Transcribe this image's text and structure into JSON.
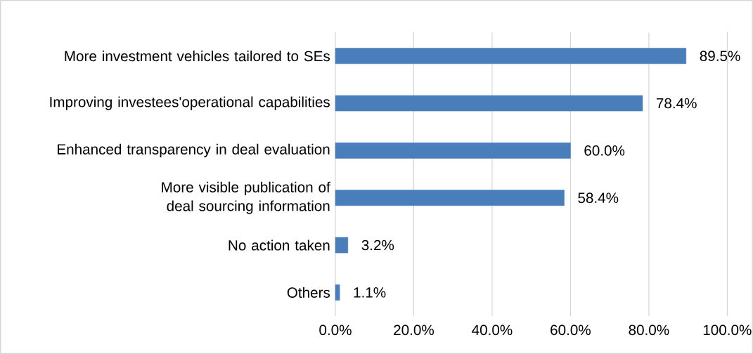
{
  "chart_data": {
    "type": "bar",
    "orientation": "horizontal",
    "categories": [
      "More investment vehicles tailored to SEs",
      "Improving investees'operational capabilities",
      "Enhanced transparency in deal evaluation",
      "More visible publication of deal sourcing information",
      "No action taken",
      "Others"
    ],
    "values": [
      89.5,
      78.4,
      60.0,
      58.4,
      3.2,
      1.1
    ],
    "value_labels": [
      "89.5%",
      "78.4%",
      "60.0%",
      "58.4%",
      "3.2%",
      "1.1%"
    ],
    "color": "#4a7ebb",
    "xlim": [
      0,
      100
    ],
    "xticks": [
      {
        "value": 0,
        "label": "0.0%"
      },
      {
        "value": 20,
        "label": "20.0%"
      },
      {
        "value": 40,
        "label": "40.0%"
      },
      {
        "value": 60,
        "label": "60.0%"
      },
      {
        "value": 80,
        "label": "80.0%"
      },
      {
        "value": 100,
        "label": "100.0%"
      }
    ],
    "grid": "x"
  }
}
